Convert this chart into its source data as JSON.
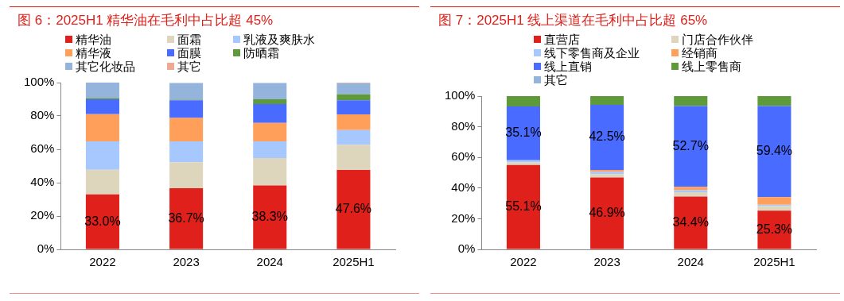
{
  "chart_data": [
    {
      "type": "bar",
      "title": "图 6：2025H1 精华油在毛利中占比超 45%",
      "categories": [
        "2022",
        "2023",
        "2024",
        "2025H1"
      ],
      "stacked": true,
      "legend": "top",
      "grid": false,
      "ylim": [
        0,
        100
      ],
      "yticks": [
        {
          "value": 0,
          "label": "0%"
        },
        {
          "value": 20,
          "label": "20%"
        },
        {
          "value": 40,
          "label": "40%"
        },
        {
          "value": 60,
          "label": "60%"
        },
        {
          "value": 80,
          "label": "80%"
        },
        {
          "value": 100,
          "label": "100%"
        }
      ],
      "series": [
        {
          "name": "精华油",
          "color": "#e0201a",
          "values": [
            33.0,
            36.7,
            38.3,
            47.6
          ],
          "value_labels": [
            "33.0%",
            "36.7%",
            "38.3%",
            "47.6%"
          ]
        },
        {
          "name": "面霜",
          "color": "#ded5bd",
          "values": [
            14.7,
            15.6,
            16.5,
            15.1
          ]
        },
        {
          "name": "乳液及爽肤水",
          "color": "#a6c8ff",
          "values": [
            17.1,
            12.5,
            10.0,
            8.9
          ]
        },
        {
          "name": "精华液",
          "color": "#ff9f5a",
          "values": [
            16.3,
            14.0,
            11.0,
            9.3
          ]
        },
        {
          "name": "面膜",
          "color": "#4a6bff",
          "values": [
            8.9,
            10.6,
            11.4,
            8.5
          ]
        },
        {
          "name": "防晒霜",
          "color": "#5e9a3a",
          "values": [
            0.7,
            0.4,
            2.8,
            3.6
          ]
        },
        {
          "name": "其它化妆品",
          "color": "#94b4dc",
          "values": [
            9.3,
            10.0,
            9.8,
            6.6
          ]
        },
        {
          "name": "其它",
          "color": "#f0a890",
          "values": [
            0,
            null,
            null,
            0.4
          ]
        }
      ]
    },
    {
      "type": "bar",
      "title": "图 7：2025H1 线上渠道在毛利中占比超 65%",
      "categories": [
        "2022",
        "2023",
        "2024",
        "2025H1"
      ],
      "stacked": true,
      "legend": "top",
      "grid": false,
      "ylim": [
        0,
        100
      ],
      "yticks": [
        {
          "value": 0,
          "label": "0%"
        },
        {
          "value": 20,
          "label": "20%"
        },
        {
          "value": 40,
          "label": "40%"
        },
        {
          "value": 60,
          "label": "60%"
        },
        {
          "value": 80,
          "label": "80%"
        },
        {
          "value": 100,
          "label": "100%"
        }
      ],
      "series": [
        {
          "name": "直营店",
          "color": "#e0201a",
          "values": [
            55.1,
            46.9,
            34.4,
            25.3
          ],
          "value_labels": [
            "55.1%",
            "46.9%",
            "34.4%",
            "25.3%"
          ]
        },
        {
          "name": "门店合作伙伴",
          "color": "#ded5bd",
          "values": [
            1.7,
            2.2,
            2.9,
            2.9
          ]
        },
        {
          "name": "线下零售商及企业",
          "color": "#a6c8ff",
          "values": [
            1.3,
            1.6,
            1.3,
            0.9
          ]
        },
        {
          "name": "经销商",
          "color": "#ff9f5a",
          "values": [
            0,
            1.1,
            2.2,
            5.0
          ]
        },
        {
          "name": "线上直销",
          "color": "#4a6bff",
          "values": [
            35.1,
            42.5,
            52.7,
            59.4
          ],
          "value_labels": [
            "35.1%",
            "42.5%",
            "52.7%",
            "59.4%"
          ]
        },
        {
          "name": "线上零售商",
          "color": "#5e9a3a",
          "values": [
            6.8,
            5.7,
            6.5,
            6.5
          ]
        },
        {
          "name": "其它",
          "color": "#94b4dc",
          "values": [
            0,
            0,
            0,
            0
          ]
        }
      ]
    }
  ]
}
